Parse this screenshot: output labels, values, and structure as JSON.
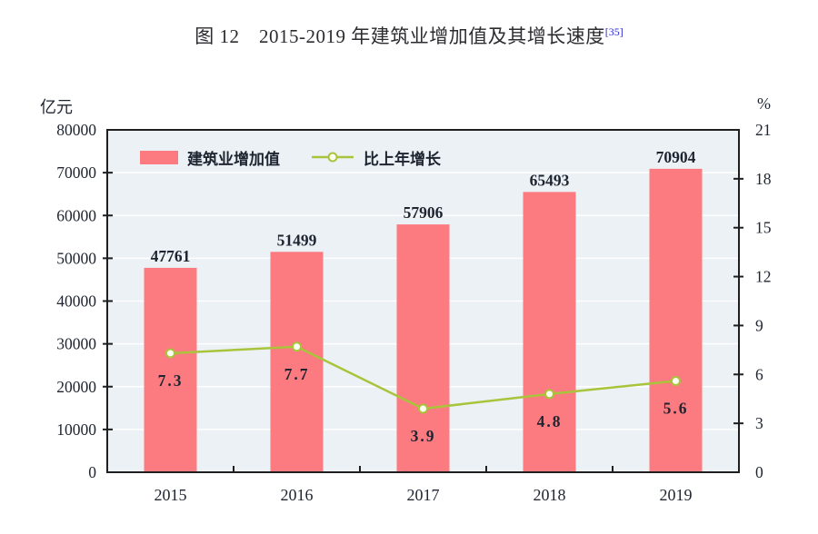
{
  "title": {
    "text": "图 12　2015-2019 年建筑业增加值及其增长速度",
    "footnote_ref": "[35]",
    "footnote_color": "#2b2bd0"
  },
  "chart_data": {
    "type": "bar",
    "combo": "bar+line",
    "title": "2015-2019 年建筑业增加值及其增长速度",
    "categories": [
      "2015",
      "2016",
      "2017",
      "2018",
      "2019"
    ],
    "series": [
      {
        "name": "建筑业增加值",
        "type": "bar",
        "axis": "left",
        "values": [
          47761,
          51499,
          57906,
          65493,
          70904
        ],
        "color": "#fb7b81",
        "label_color": "#232b3a"
      },
      {
        "name": "比上年增长",
        "type": "line",
        "axis": "right",
        "values": [
          7.3,
          7.7,
          3.9,
          4.8,
          5.6
        ],
        "color": "#a9c43a",
        "marker_fill": "#fdfff2",
        "label_color": "#4b2a24"
      }
    ],
    "left_axis": {
      "unit": "亿元",
      "min": 0,
      "max": 80000,
      "step": 10000
    },
    "right_axis": {
      "unit": "%",
      "min": 0,
      "max": 21,
      "step": 3
    },
    "grid": true,
    "legend_position": "top-left-inside",
    "colors": {
      "plot_bg": "#ebf1f5",
      "gridline": "#ffffff",
      "axis": "#1f1f1f",
      "tick_label": "#1e2430"
    }
  }
}
